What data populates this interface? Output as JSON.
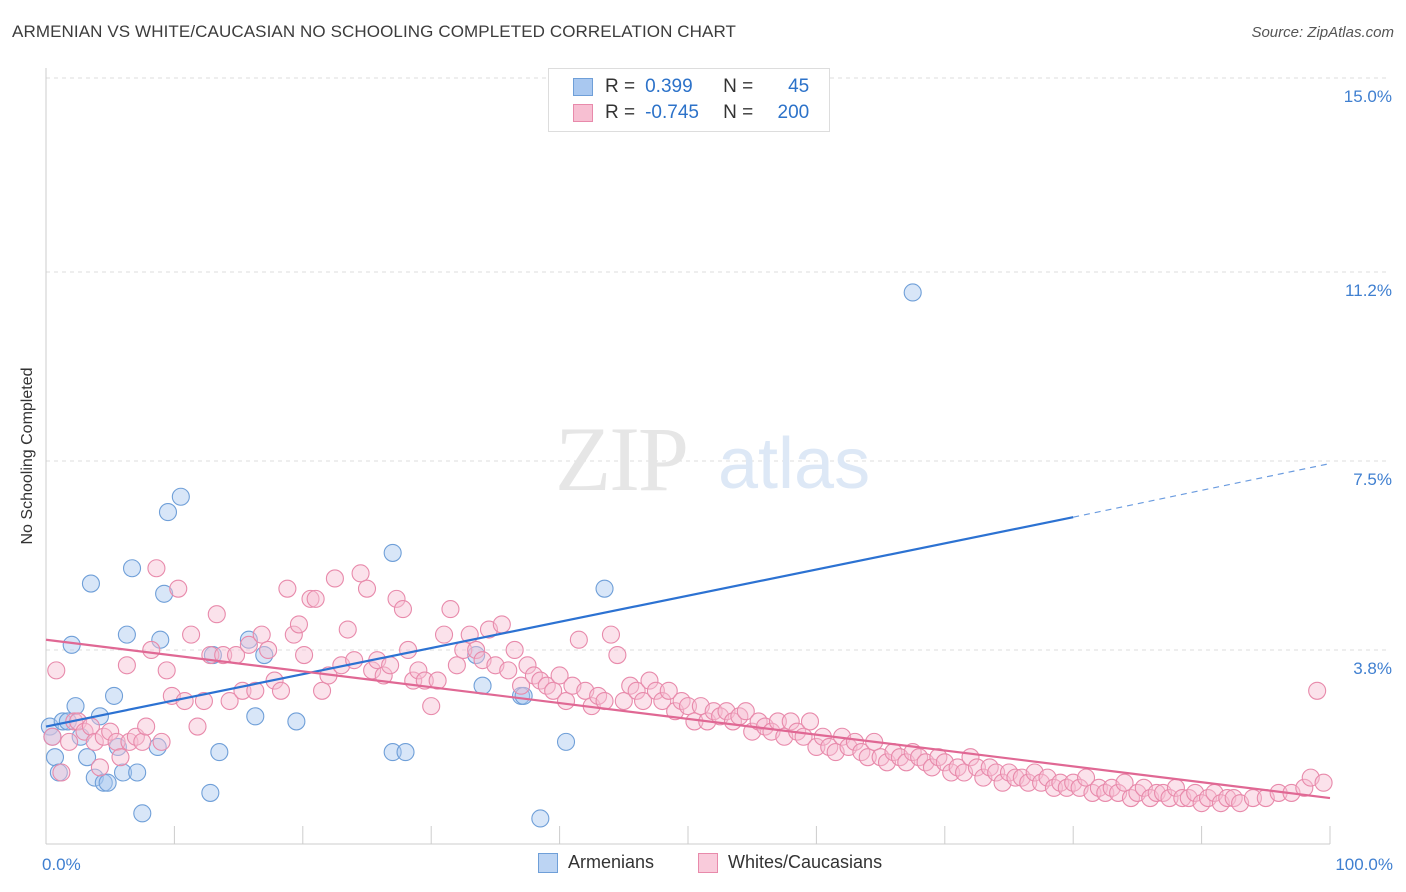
{
  "title": "ARMENIAN VS WHITE/CAUCASIAN NO SCHOOLING COMPLETED CORRELATION CHART",
  "source": "Source: ZipAtlas.com",
  "watermark": {
    "zip": "ZIP",
    "atlas": "atlas"
  },
  "legend": {
    "rows": [
      {
        "r_label": "R =",
        "r_value": "0.399",
        "n_label": "N =",
        "n_value": "45",
        "color": "#a9c8f0",
        "border": "#6f9fd8"
      },
      {
        "r_label": "R =",
        "r_value": "-0.745",
        "n_label": "N =",
        "n_value": "200",
        "color": "#f7bfd2",
        "border": "#e88aab"
      }
    ]
  },
  "bottom_legend": [
    {
      "label": "Armenians",
      "color": "#bcd4f3",
      "border": "#6f9fd8"
    },
    {
      "label": "Whites/Caucasians",
      "color": "#f9cbdb",
      "border": "#e88aab"
    }
  ],
  "chart_data": {
    "type": "scatter",
    "ylabel": "No Schooling Completed",
    "xlim": [
      0,
      100
    ],
    "ylim": [
      0,
      15
    ],
    "x_tick_labels": [
      "0.0%",
      "100.0%"
    ],
    "y_ticks": [
      {
        "value": 3.8,
        "label": "3.8%"
      },
      {
        "value": 7.5,
        "label": "7.5%"
      },
      {
        "value": 11.2,
        "label": "11.2%"
      },
      {
        "value": 15.0,
        "label": "15.0%"
      }
    ],
    "grid": true,
    "series": [
      {
        "name": "Armenians",
        "color": "#6f9fd8",
        "fill": "rgba(169,200,240,0.45)",
        "trend": {
          "x0": 0,
          "y0": 2.3,
          "x1": 80,
          "y1": 6.4,
          "dash_to_x": 100,
          "dash_to_y": 7.45,
          "color": "#2c72d2"
        },
        "points": [
          [
            0.3,
            2.3
          ],
          [
            0.5,
            2.1
          ],
          [
            0.7,
            1.7
          ],
          [
            1.0,
            1.4
          ],
          [
            1.3,
            2.4
          ],
          [
            1.7,
            2.4
          ],
          [
            2.0,
            3.9
          ],
          [
            2.3,
            2.7
          ],
          [
            2.7,
            2.1
          ],
          [
            3.2,
            1.7
          ],
          [
            3.5,
            5.1
          ],
          [
            3.8,
            1.3
          ],
          [
            4.2,
            2.5
          ],
          [
            4.5,
            1.2
          ],
          [
            4.8,
            1.2
          ],
          [
            5.3,
            2.9
          ],
          [
            5.6,
            1.9
          ],
          [
            6.0,
            1.4
          ],
          [
            6.3,
            4.1
          ],
          [
            6.7,
            5.4
          ],
          [
            7.1,
            1.4
          ],
          [
            7.5,
            0.6
          ],
          [
            8.7,
            1.9
          ],
          [
            8.9,
            4.0
          ],
          [
            9.2,
            4.9
          ],
          [
            9.5,
            6.5
          ],
          [
            10.5,
            6.8
          ],
          [
            12.8,
            1.0
          ],
          [
            13.0,
            3.7
          ],
          [
            13.5,
            1.8
          ],
          [
            15.8,
            4.0
          ],
          [
            16.3,
            2.5
          ],
          [
            17.0,
            3.7
          ],
          [
            19.5,
            2.4
          ],
          [
            27.0,
            5.7
          ],
          [
            27.0,
            1.8
          ],
          [
            28.0,
            1.8
          ],
          [
            33.5,
            3.7
          ],
          [
            34.0,
            3.1
          ],
          [
            37.0,
            2.9
          ],
          [
            37.2,
            2.9
          ],
          [
            38.5,
            0.5
          ],
          [
            40.5,
            2.0
          ],
          [
            43.5,
            5.0
          ],
          [
            67.5,
            10.8
          ]
        ]
      },
      {
        "name": "Whites/Caucasians",
        "color": "#e88aab",
        "fill": "rgba(247,191,210,0.45)",
        "trend": {
          "x0": 0,
          "y0": 4.0,
          "x1": 100,
          "y1": 0.9,
          "color": "#e06894"
        },
        "points": [
          [
            0.5,
            2.1
          ],
          [
            0.8,
            3.4
          ],
          [
            1.2,
            1.4
          ],
          [
            1.8,
            2.0
          ],
          [
            2.2,
            2.4
          ],
          [
            2.5,
            2.4
          ],
          [
            3.0,
            2.2
          ],
          [
            3.5,
            2.3
          ],
          [
            3.8,
            2.0
          ],
          [
            4.2,
            1.5
          ],
          [
            4.5,
            2.1
          ],
          [
            5.0,
            2.2
          ],
          [
            5.5,
            2.0
          ],
          [
            5.8,
            1.7
          ],
          [
            6.3,
            3.5
          ],
          [
            6.5,
            2.0
          ],
          [
            7.0,
            2.1
          ],
          [
            7.5,
            2.0
          ],
          [
            7.8,
            2.3
          ],
          [
            8.2,
            3.8
          ],
          [
            8.6,
            5.4
          ],
          [
            9.0,
            2.0
          ],
          [
            9.4,
            3.4
          ],
          [
            9.8,
            2.9
          ],
          [
            10.3,
            5.0
          ],
          [
            10.8,
            2.8
          ],
          [
            11.3,
            4.1
          ],
          [
            11.8,
            2.3
          ],
          [
            12.3,
            2.8
          ],
          [
            12.8,
            3.7
          ],
          [
            13.3,
            4.5
          ],
          [
            13.8,
            3.7
          ],
          [
            14.3,
            2.8
          ],
          [
            14.8,
            3.7
          ],
          [
            15.3,
            3.0
          ],
          [
            15.8,
            3.9
          ],
          [
            16.3,
            3.0
          ],
          [
            16.8,
            4.1
          ],
          [
            17.3,
            3.8
          ],
          [
            17.8,
            3.2
          ],
          [
            18.3,
            3.0
          ],
          [
            18.8,
            5.0
          ],
          [
            19.3,
            4.1
          ],
          [
            19.7,
            4.3
          ],
          [
            20.1,
            3.7
          ],
          [
            20.6,
            4.8
          ],
          [
            21.0,
            4.8
          ],
          [
            21.5,
            3.0
          ],
          [
            22.0,
            3.3
          ],
          [
            22.5,
            5.2
          ],
          [
            23.0,
            3.5
          ],
          [
            23.5,
            4.2
          ],
          [
            24.0,
            3.6
          ],
          [
            24.5,
            5.3
          ],
          [
            25.0,
            5.0
          ],
          [
            25.4,
            3.4
          ],
          [
            25.8,
            3.6
          ],
          [
            26.3,
            3.3
          ],
          [
            26.8,
            3.5
          ],
          [
            27.3,
            4.8
          ],
          [
            27.8,
            4.6
          ],
          [
            28.2,
            3.8
          ],
          [
            28.6,
            3.2
          ],
          [
            29.0,
            3.4
          ],
          [
            29.5,
            3.2
          ],
          [
            30.0,
            2.7
          ],
          [
            30.5,
            3.2
          ],
          [
            31.0,
            4.1
          ],
          [
            31.5,
            4.6
          ],
          [
            32.0,
            3.5
          ],
          [
            32.5,
            3.8
          ],
          [
            33.0,
            4.1
          ],
          [
            33.5,
            3.8
          ],
          [
            34.0,
            3.6
          ],
          [
            34.5,
            4.2
          ],
          [
            35.0,
            3.5
          ],
          [
            35.5,
            4.3
          ],
          [
            36.0,
            3.4
          ],
          [
            36.5,
            3.8
          ],
          [
            37.0,
            3.1
          ],
          [
            37.5,
            3.5
          ],
          [
            38.0,
            3.3
          ],
          [
            38.5,
            3.2
          ],
          [
            39.0,
            3.1
          ],
          [
            39.5,
            3.0
          ],
          [
            40.0,
            3.3
          ],
          [
            40.5,
            2.8
          ],
          [
            41.0,
            3.1
          ],
          [
            41.5,
            4.0
          ],
          [
            42.0,
            3.0
          ],
          [
            42.5,
            2.7
          ],
          [
            43.0,
            2.9
          ],
          [
            43.5,
            2.8
          ],
          [
            44.0,
            4.1
          ],
          [
            44.5,
            3.7
          ],
          [
            45.0,
            2.8
          ],
          [
            45.5,
            3.1
          ],
          [
            46.0,
            3.0
          ],
          [
            46.5,
            2.8
          ],
          [
            47.0,
            3.2
          ],
          [
            47.5,
            3.0
          ],
          [
            48.0,
            2.8
          ],
          [
            48.5,
            3.0
          ],
          [
            49.0,
            2.6
          ],
          [
            49.5,
            2.8
          ],
          [
            50.0,
            2.7
          ],
          [
            50.5,
            2.4
          ],
          [
            51.0,
            2.7
          ],
          [
            51.5,
            2.4
          ],
          [
            52.0,
            2.6
          ],
          [
            52.5,
            2.5
          ],
          [
            53.0,
            2.6
          ],
          [
            53.5,
            2.4
          ],
          [
            54.0,
            2.5
          ],
          [
            54.5,
            2.6
          ],
          [
            55.0,
            2.2
          ],
          [
            55.5,
            2.4
          ],
          [
            56.0,
            2.3
          ],
          [
            56.5,
            2.2
          ],
          [
            57.0,
            2.4
          ],
          [
            57.5,
            2.1
          ],
          [
            58.0,
            2.4
          ],
          [
            58.5,
            2.2
          ],
          [
            59.0,
            2.1
          ],
          [
            59.5,
            2.4
          ],
          [
            60.0,
            1.9
          ],
          [
            60.5,
            2.1
          ],
          [
            61.0,
            1.9
          ],
          [
            61.5,
            1.8
          ],
          [
            62.0,
            2.1
          ],
          [
            62.5,
            1.9
          ],
          [
            63.0,
            2.0
          ],
          [
            63.5,
            1.8
          ],
          [
            64.0,
            1.7
          ],
          [
            64.5,
            2.0
          ],
          [
            65.0,
            1.7
          ],
          [
            65.5,
            1.6
          ],
          [
            66.0,
            1.8
          ],
          [
            66.5,
            1.7
          ],
          [
            67.0,
            1.6
          ],
          [
            67.5,
            1.8
          ],
          [
            68.0,
            1.7
          ],
          [
            68.5,
            1.6
          ],
          [
            69.0,
            1.5
          ],
          [
            69.5,
            1.7
          ],
          [
            70.0,
            1.6
          ],
          [
            70.5,
            1.4
          ],
          [
            71.0,
            1.5
          ],
          [
            71.5,
            1.4
          ],
          [
            72.0,
            1.7
          ],
          [
            72.5,
            1.5
          ],
          [
            73.0,
            1.3
          ],
          [
            73.5,
            1.5
          ],
          [
            74.0,
            1.4
          ],
          [
            74.5,
            1.2
          ],
          [
            75.0,
            1.4
          ],
          [
            75.5,
            1.3
          ],
          [
            76.0,
            1.3
          ],
          [
            76.5,
            1.2
          ],
          [
            77.0,
            1.4
          ],
          [
            77.5,
            1.2
          ],
          [
            78.0,
            1.3
          ],
          [
            78.5,
            1.1
          ],
          [
            79.0,
            1.2
          ],
          [
            79.5,
            1.1
          ],
          [
            80.0,
            1.2
          ],
          [
            80.5,
            1.1
          ],
          [
            81.0,
            1.3
          ],
          [
            81.5,
            1.0
          ],
          [
            82.0,
            1.1
          ],
          [
            82.5,
            1.0
          ],
          [
            83.0,
            1.1
          ],
          [
            83.5,
            1.0
          ],
          [
            84.0,
            1.2
          ],
          [
            84.5,
            0.9
          ],
          [
            85.0,
            1.0
          ],
          [
            85.5,
            1.1
          ],
          [
            86.0,
            0.9
          ],
          [
            86.5,
            1.0
          ],
          [
            87.0,
            1.0
          ],
          [
            87.5,
            0.9
          ],
          [
            88.0,
            1.1
          ],
          [
            88.5,
            0.9
          ],
          [
            89.0,
            0.9
          ],
          [
            89.5,
            1.0
          ],
          [
            90.0,
            0.8
          ],
          [
            90.5,
            0.9
          ],
          [
            91.0,
            1.0
          ],
          [
            91.5,
            0.8
          ],
          [
            92.0,
            0.9
          ],
          [
            92.5,
            0.9
          ],
          [
            93.0,
            0.8
          ],
          [
            94.0,
            0.9
          ],
          [
            95.0,
            0.9
          ],
          [
            96.0,
            1.0
          ],
          [
            97.0,
            1.0
          ],
          [
            98.0,
            1.1
          ],
          [
            98.5,
            1.3
          ],
          [
            99.0,
            3.0
          ],
          [
            99.5,
            1.2
          ]
        ]
      }
    ]
  }
}
